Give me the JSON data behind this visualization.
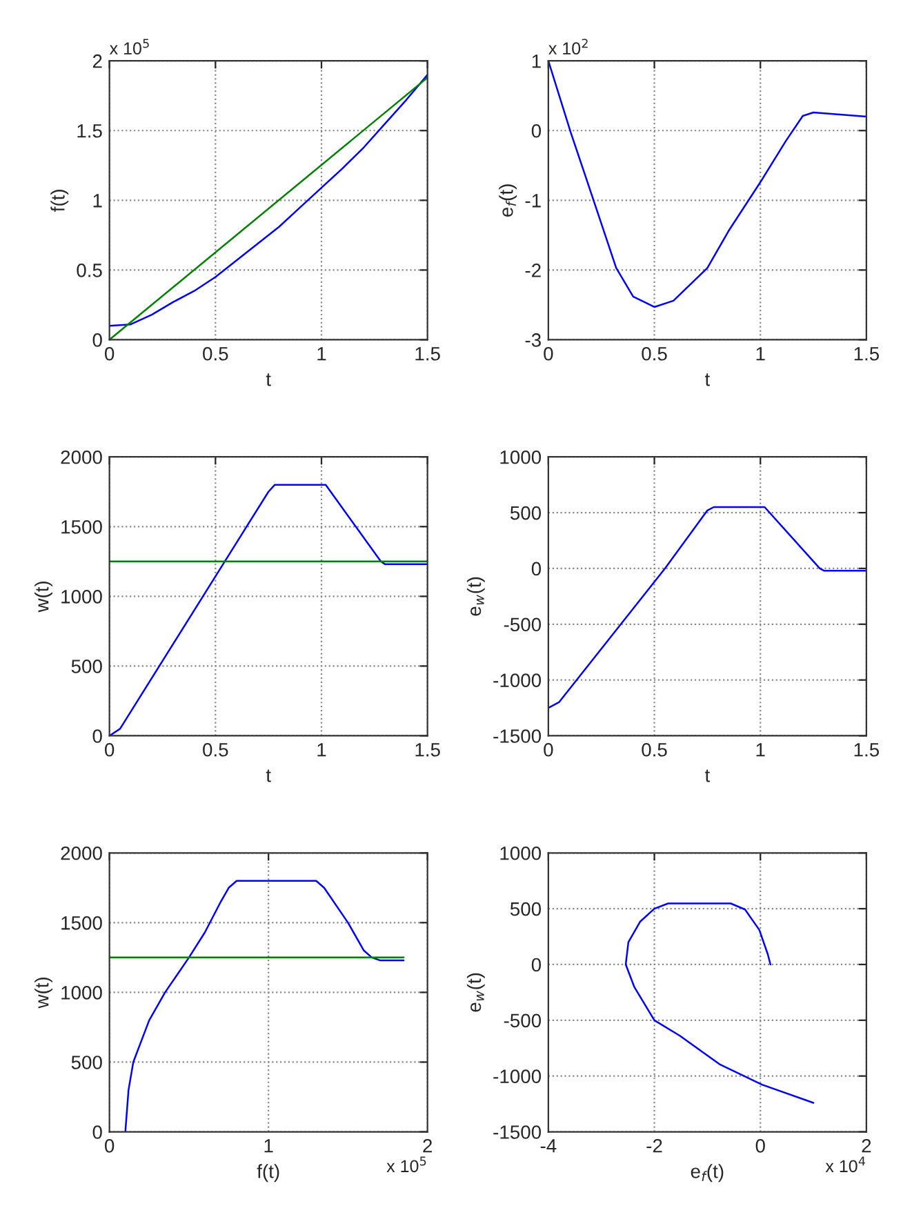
{
  "chart_data": [
    {
      "type": "line",
      "xlabel": "t",
      "ylabel": "f(t)",
      "xlim": [
        0,
        1.5
      ],
      "xticks": [
        0,
        0.5,
        1,
        1.5
      ],
      "ylim": [
        0,
        2
      ],
      "yticks": [
        0,
        0.5,
        1,
        1.5,
        2
      ],
      "grid": true,
      "annotations": [
        "x 10$^{5}$"
      ],
      "series": [
        {
          "color": "#0000ff",
          "x": [
            0,
            0.1,
            0.2,
            0.3,
            0.4,
            0.5,
            0.6,
            0.7,
            0.8,
            0.9,
            1.0,
            1.1,
            1.2,
            1.3,
            1.4,
            1.5
          ],
          "values": [
            0.1,
            0.11,
            0.18,
            0.27,
            0.35,
            0.45,
            0.57,
            0.69,
            0.81,
            0.95,
            1.09,
            1.23,
            1.38,
            1.55,
            1.72,
            1.9
          ]
        },
        {
          "color": "#008000",
          "x": [
            0,
            1.5
          ],
          "values": [
            0,
            1.88
          ]
        }
      ]
    },
    {
      "type": "line",
      "xlabel": "t",
      "ylabel": "e$_{f}$(t)",
      "xlim": [
        0,
        1.5
      ],
      "xticks": [
        0,
        0.5,
        1,
        1.5
      ],
      "ylim": [
        -3,
        1
      ],
      "yticks": [
        -3,
        -2,
        -1,
        0,
        1
      ],
      "grid": true,
      "annotations": [
        "x 10$^{2}$"
      ],
      "series": [
        {
          "color": "#0000ff",
          "x": [
            0,
            0.106,
            0.21,
            0.32,
            0.4,
            0.5,
            0.59,
            0.75,
            0.85,
            1.0,
            1.12,
            1.2,
            1.25,
            1.5
          ],
          "values": [
            1,
            -0.03,
            -0.97,
            -1.97,
            -2.38,
            -2.53,
            -2.44,
            -1.97,
            -1.44,
            -0.74,
            -0.15,
            0.21,
            0.26,
            0.2
          ]
        }
      ]
    },
    {
      "type": "line",
      "xlabel": "t",
      "ylabel": "w(t)",
      "xlim": [
        0,
        1.5
      ],
      "xticks": [
        0,
        0.5,
        1,
        1.5
      ],
      "ylim": [
        0,
        2000
      ],
      "yticks": [
        0,
        500,
        1000,
        1500,
        2000
      ],
      "grid": true,
      "series": [
        {
          "color": "#0000ff",
          "x": [
            0,
            0.05,
            0.55,
            0.75,
            0.78,
            1.02,
            1.28,
            1.3,
            1.5
          ],
          "values": [
            0,
            50,
            1265,
            1750,
            1800,
            1800,
            1250,
            1230,
            1230
          ]
        },
        {
          "color": "#008000",
          "x": [
            0,
            1.5
          ],
          "values": [
            1250,
            1250
          ]
        }
      ]
    },
    {
      "type": "line",
      "xlabel": "t",
      "ylabel": "e$_{w}$(t)",
      "xlim": [
        0,
        1.5
      ],
      "xticks": [
        0,
        0.5,
        1,
        1.5
      ],
      "ylim": [
        -1500,
        1000
      ],
      "yticks": [
        -1500,
        -1000,
        -500,
        0,
        500,
        1000
      ],
      "grid": true,
      "series": [
        {
          "color": "#0000ff",
          "x": [
            0,
            0.05,
            0.55,
            0.75,
            0.78,
            1.02,
            1.28,
            1.3,
            1.5
          ],
          "values": [
            -1250,
            -1200,
            0,
            520,
            550,
            550,
            0,
            -20,
            -20
          ]
        }
      ]
    },
    {
      "type": "line",
      "xlabel": "f(t)",
      "ylabel": "w(t)",
      "xlim": [
        0,
        2
      ],
      "xticks": [
        0,
        1,
        2
      ],
      "ylim": [
        0,
        2000
      ],
      "yticks": [
        0,
        500,
        1000,
        1500,
        2000
      ],
      "grid": true,
      "annotations": [
        "x 10$^{5}$"
      ],
      "series": [
        {
          "color": "#0000ff",
          "x": [
            0.1,
            0.12,
            0.15,
            0.25,
            0.35,
            0.5,
            0.6,
            0.7,
            0.75,
            0.8,
            1.3,
            1.35,
            1.5,
            1.6,
            1.65,
            1.7,
            1.85
          ],
          "values": [
            0,
            300,
            500,
            800,
            1000,
            1250,
            1430,
            1650,
            1750,
            1800,
            1800,
            1750,
            1500,
            1300,
            1250,
            1230,
            1230
          ]
        },
        {
          "color": "#008000",
          "x": [
            0,
            1.85
          ],
          "values": [
            1250,
            1250
          ]
        }
      ]
    },
    {
      "type": "line",
      "xlabel": "e$_{f}$(t)",
      "ylabel": "e$_{w}$(t)",
      "xlim": [
        -4,
        2
      ],
      "xticks": [
        -4,
        -2,
        0,
        2
      ],
      "ylim": [
        -1500,
        1000
      ],
      "yticks": [
        -1500,
        -1000,
        -500,
        0,
        500,
        1000
      ],
      "grid": true,
      "annotations": [
        "x 10$^{4}$"
      ],
      "series": [
        {
          "color": "#0000ff",
          "x": [
            1.0,
            0.03,
            -0.77,
            -1.52,
            -2.0,
            -2.38,
            -2.54,
            -2.49,
            -2.27,
            -2.0,
            -1.74,
            -0.56,
            -0.29,
            -0.02,
            0.14,
            0.19
          ],
          "values": [
            -1240,
            -1077,
            -894,
            -639,
            -500,
            -200,
            0,
            200,
            383,
            500,
            547,
            547,
            493,
            310,
            91,
            0
          ]
        }
      ]
    }
  ]
}
